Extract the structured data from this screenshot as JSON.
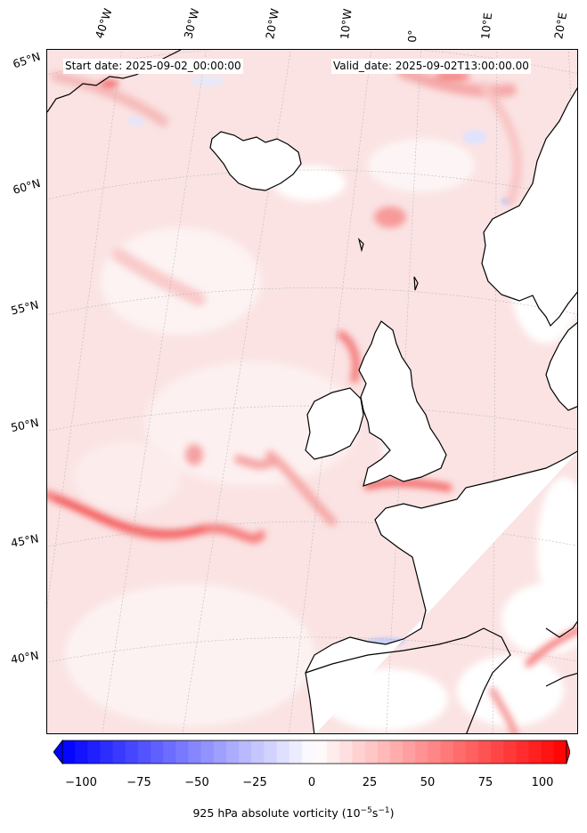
{
  "header": {
    "start_date": "Start date: 2025-09-02_00:00:00",
    "valid_date": "Valid_date: 2025-09-02T13:00:00.00"
  },
  "longitude_labels": [
    "40°W",
    "30°W",
    "20°W",
    "10°W",
    "0°",
    "10°E",
    "20°E"
  ],
  "latitude_labels": [
    "65°N",
    "60°N",
    "55°N",
    "50°N",
    "45°N",
    "40°N"
  ],
  "colorbar": {
    "ticks": [
      "−100",
      "−75",
      "−50",
      "−25",
      "0",
      "25",
      "50",
      "75",
      "100"
    ],
    "label": "925 hPa absolute vorticity (10",
    "label_exp": "−5",
    "label_unit": "s",
    "label_exp2": "−1",
    "label_end": ")",
    "range": [
      -100,
      100
    ],
    "extend": "both",
    "colors": {
      "negative": "#0000ff",
      "zero": "#ffffff",
      "positive": "#ff0000"
    }
  },
  "map": {
    "projection": "conic",
    "gridlines": "dashed-grey",
    "coastline_color": "#000000"
  }
}
